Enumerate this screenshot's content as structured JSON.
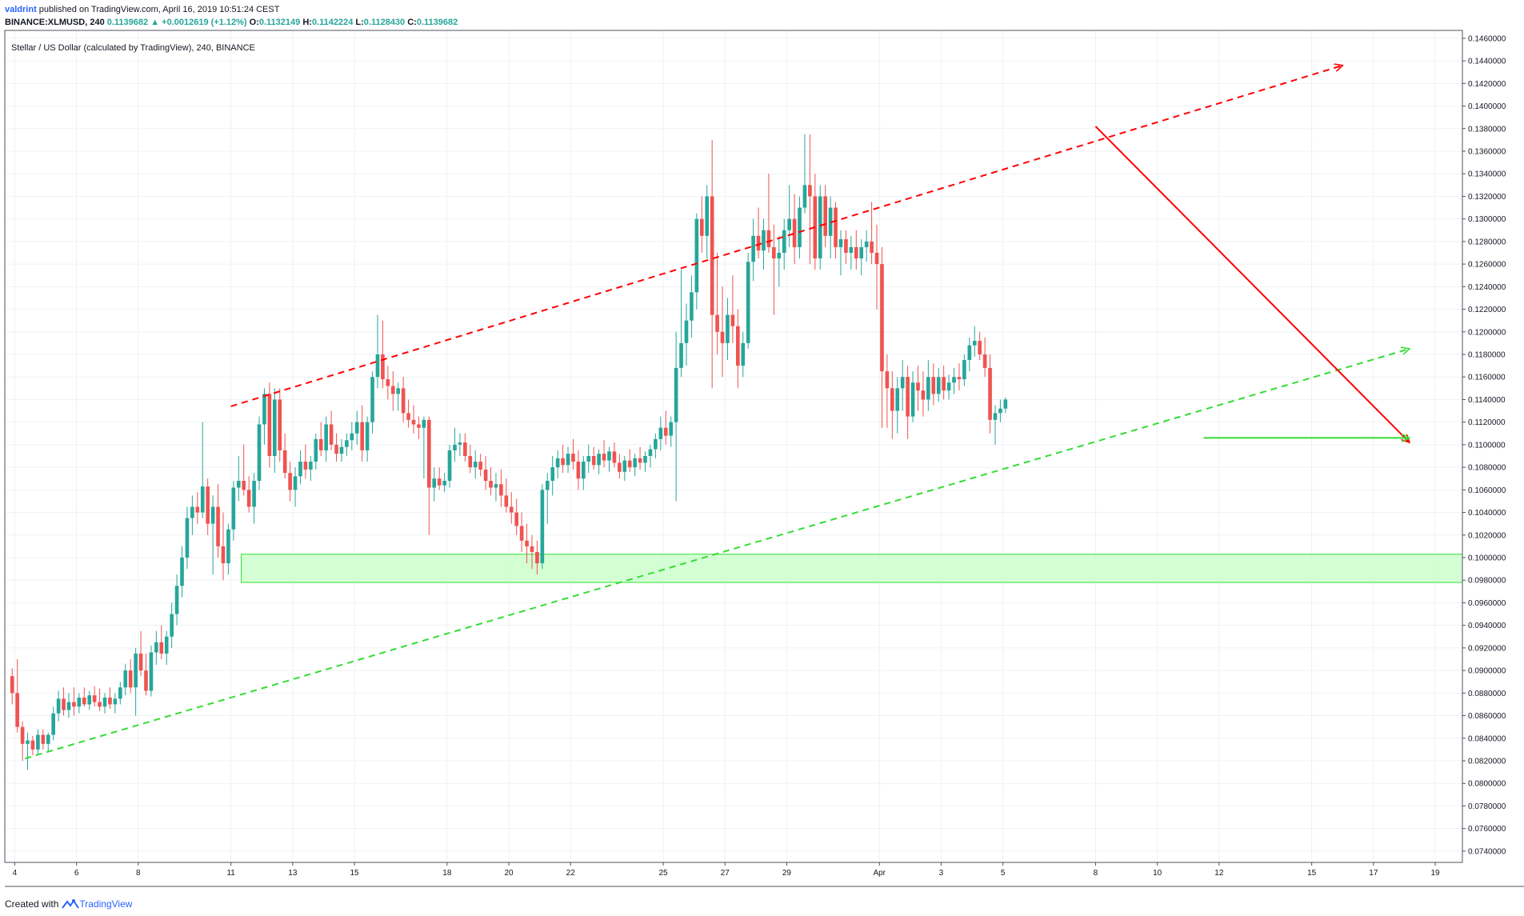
{
  "header": {
    "author": "valdrint",
    "published": "published on TradingView.com, April 16, 2019 10:51:24 CEST",
    "symbol": "BINANCE:XLMUSD, 240",
    "last": "0.1139682",
    "change": "▲ +0.0012619 (+1.12%)",
    "o_label": "O:",
    "o": "0.1132149",
    "h_label": "H:",
    "h": "0.1142224",
    "l_label": "L:",
    "l": "0.1128430",
    "c_label": "C:",
    "c": "0.1139682"
  },
  "footer": {
    "created_with": "Created with",
    "brand": "TradingView",
    "brand_icon": "tradingview-logo-icon"
  },
  "colors": {
    "up": "#26a69a",
    "down": "#ef5350",
    "resistance": "#ff0000",
    "support": "#33dd33",
    "zone": "#ccffcc",
    "grid": "#eef1f5"
  },
  "chart_data": {
    "type": "candlestick",
    "title": "Stellar / US Dollar (calculated by TradingView), 240, BINANCE",
    "ylim": [
      0.073,
      0.1467
    ],
    "y_ticks": [
      "0.1460000",
      "0.1440000",
      "0.1420000",
      "0.1400000",
      "0.1380000",
      "0.1360000",
      "0.1340000",
      "0.1320000",
      "0.1300000",
      "0.1280000",
      "0.1260000",
      "0.1240000",
      "0.1220000",
      "0.1200000",
      "0.1180000",
      "0.1160000",
      "0.1140000",
      "0.1120000",
      "0.1100000",
      "0.1080000",
      "0.1060000",
      "0.1040000",
      "0.1020000",
      "0.1000000",
      "0.0980000",
      "0.0960000",
      "0.0940000",
      "0.0920000",
      "0.0900000",
      "0.0880000",
      "0.0860000",
      "0.0840000",
      "0.0820000",
      "0.0800000",
      "0.0780000",
      "0.0760000",
      "0.0740000"
    ],
    "x_ticks": [
      {
        "label": "4",
        "date": "2019-03-04"
      },
      {
        "label": "6",
        "date": "2019-03-06"
      },
      {
        "label": "8",
        "date": "2019-03-08"
      },
      {
        "label": "11",
        "date": "2019-03-11"
      },
      {
        "label": "13",
        "date": "2019-03-13"
      },
      {
        "label": "15",
        "date": "2019-03-15"
      },
      {
        "label": "18",
        "date": "2019-03-18"
      },
      {
        "label": "20",
        "date": "2019-03-20"
      },
      {
        "label": "22",
        "date": "2019-03-22"
      },
      {
        "label": "25",
        "date": "2019-03-25"
      },
      {
        "label": "27",
        "date": "2019-03-27"
      },
      {
        "label": "29",
        "date": "2019-03-29"
      },
      {
        "label": "Apr",
        "date": "2019-04-01"
      },
      {
        "label": "3",
        "date": "2019-04-03"
      },
      {
        "label": "5",
        "date": "2019-04-05"
      },
      {
        "label": "8",
        "date": "2019-04-08"
      },
      {
        "label": "10",
        "date": "2019-04-10"
      },
      {
        "label": "12",
        "date": "2019-04-12"
      },
      {
        "label": "15",
        "date": "2019-04-15"
      },
      {
        "label": "17",
        "date": "2019-04-17"
      },
      {
        "label": "19",
        "date": "2019-04-19"
      }
    ],
    "start_date": "2019-03-03T20:00",
    "bar_hours": 4,
    "series": [
      [
        0.0895,
        0.0902,
        0.087,
        0.088
      ],
      [
        0.088,
        0.091,
        0.0845,
        0.085
      ],
      [
        0.085,
        0.0855,
        0.082,
        0.0835
      ],
      [
        0.0835,
        0.0845,
        0.0812,
        0.0838
      ],
      [
        0.0838,
        0.0842,
        0.0825,
        0.083
      ],
      [
        0.083,
        0.0848,
        0.0826,
        0.0843
      ],
      [
        0.0843,
        0.0848,
        0.083,
        0.0835
      ],
      [
        0.0835,
        0.0845,
        0.0828,
        0.0843
      ],
      [
        0.0843,
        0.0868,
        0.0838,
        0.0862
      ],
      [
        0.0862,
        0.0882,
        0.0855,
        0.0875
      ],
      [
        0.0875,
        0.0885,
        0.086,
        0.0865
      ],
      [
        0.0865,
        0.088,
        0.0858,
        0.0872
      ],
      [
        0.0872,
        0.0885,
        0.086,
        0.0868
      ],
      [
        0.0868,
        0.088,
        0.0862,
        0.0876
      ],
      [
        0.0876,
        0.0885,
        0.0868,
        0.087
      ],
      [
        0.087,
        0.0882,
        0.0865,
        0.0878
      ],
      [
        0.0878,
        0.0886,
        0.0868,
        0.0872
      ],
      [
        0.0872,
        0.0884,
        0.0864,
        0.0868
      ],
      [
        0.0868,
        0.088,
        0.0862,
        0.0876
      ],
      [
        0.0876,
        0.0885,
        0.0866,
        0.087
      ],
      [
        0.087,
        0.088,
        0.0862,
        0.0875
      ],
      [
        0.0875,
        0.089,
        0.087,
        0.0885
      ],
      [
        0.0885,
        0.0906,
        0.0878,
        0.09
      ],
      [
        0.09,
        0.091,
        0.088,
        0.0885
      ],
      [
        0.0885,
        0.092,
        0.086,
        0.0915
      ],
      [
        0.0915,
        0.0935,
        0.0895,
        0.09
      ],
      [
        0.09,
        0.0915,
        0.0878,
        0.0882
      ],
      [
        0.0882,
        0.0922,
        0.0877,
        0.0916
      ],
      [
        0.0916,
        0.0935,
        0.0905,
        0.0925
      ],
      [
        0.0925,
        0.094,
        0.091,
        0.0915
      ],
      [
        0.0915,
        0.0935,
        0.0905,
        0.093
      ],
      [
        0.093,
        0.096,
        0.092,
        0.095
      ],
      [
        0.095,
        0.0985,
        0.094,
        0.0975
      ],
      [
        0.0975,
        0.101,
        0.0965,
        0.1
      ],
      [
        0.1,
        0.1045,
        0.099,
        0.1035
      ],
      [
        0.1035,
        0.1055,
        0.102,
        0.1045
      ],
      [
        0.1045,
        0.1058,
        0.103,
        0.104
      ],
      [
        0.104,
        0.112,
        0.1035,
        0.1063
      ],
      [
        0.1063,
        0.107,
        0.102,
        0.103
      ],
      [
        0.103,
        0.1055,
        0.0985,
        0.1045
      ],
      [
        0.1045,
        0.1065,
        0.1,
        0.101
      ],
      [
        0.101,
        0.104,
        0.098,
        0.0995
      ],
      [
        0.0995,
        0.103,
        0.0985,
        0.1025
      ],
      [
        0.1025,
        0.1068,
        0.1015,
        0.1062
      ],
      [
        0.1062,
        0.109,
        0.105,
        0.1068
      ],
      [
        0.1068,
        0.11,
        0.1055,
        0.106
      ],
      [
        0.106,
        0.1072,
        0.104,
        0.1045
      ],
      [
        0.1045,
        0.1075,
        0.103,
        0.1068
      ],
      [
        0.1068,
        0.1125,
        0.106,
        0.1118
      ],
      [
        0.1118,
        0.115,
        0.11,
        0.1145
      ],
      [
        0.1145,
        0.1155,
        0.108,
        0.109
      ],
      [
        0.109,
        0.115,
        0.1075,
        0.114
      ],
      [
        0.114,
        0.115,
        0.1085,
        0.1095
      ],
      [
        0.1095,
        0.111,
        0.107,
        0.1075
      ],
      [
        0.1075,
        0.1085,
        0.105,
        0.106
      ],
      [
        0.106,
        0.108,
        0.1045,
        0.1072
      ],
      [
        0.1072,
        0.1095,
        0.1065,
        0.1085
      ],
      [
        0.1085,
        0.11,
        0.107,
        0.1078
      ],
      [
        0.1078,
        0.109,
        0.1068,
        0.1085
      ],
      [
        0.1085,
        0.111,
        0.1078,
        0.1105
      ],
      [
        0.1105,
        0.112,
        0.109,
        0.1095
      ],
      [
        0.1095,
        0.1125,
        0.1085,
        0.1118
      ],
      [
        0.1118,
        0.113,
        0.1095,
        0.11
      ],
      [
        0.11,
        0.111,
        0.1085,
        0.1092
      ],
      [
        0.1092,
        0.1105,
        0.1085,
        0.1098
      ],
      [
        0.1098,
        0.111,
        0.109,
        0.1104
      ],
      [
        0.1104,
        0.112,
        0.1095,
        0.111
      ],
      [
        0.111,
        0.113,
        0.11,
        0.112
      ],
      [
        0.112,
        0.1135,
        0.1085,
        0.1095
      ],
      [
        0.1095,
        0.1125,
        0.1085,
        0.112
      ],
      [
        0.112,
        0.1165,
        0.111,
        0.116
      ],
      [
        0.116,
        0.1215,
        0.115,
        0.118
      ],
      [
        0.118,
        0.121,
        0.115,
        0.1158
      ],
      [
        0.1158,
        0.117,
        0.114,
        0.1152
      ],
      [
        0.1152,
        0.1165,
        0.113,
        0.1145
      ],
      [
        0.1145,
        0.1155,
        0.113,
        0.115
      ],
      [
        0.115,
        0.116,
        0.112,
        0.1128
      ],
      [
        0.1128,
        0.114,
        0.1115,
        0.1122
      ],
      [
        0.1122,
        0.1135,
        0.111,
        0.1118
      ],
      [
        0.1118,
        0.1125,
        0.1105,
        0.1115
      ],
      [
        0.1115,
        0.1125,
        0.107,
        0.1122
      ],
      [
        0.1122,
        0.1125,
        0.102,
        0.1062
      ],
      [
        0.1062,
        0.108,
        0.105,
        0.107
      ],
      [
        0.107,
        0.108,
        0.106,
        0.1064
      ],
      [
        0.1064,
        0.1075,
        0.1058,
        0.1068
      ],
      [
        0.1068,
        0.11,
        0.1062,
        0.1095
      ],
      [
        0.1095,
        0.1115,
        0.1085,
        0.11
      ],
      [
        0.11,
        0.111,
        0.109,
        0.1102
      ],
      [
        0.1102,
        0.111,
        0.1085,
        0.109
      ],
      [
        0.109,
        0.11,
        0.1075,
        0.108
      ],
      [
        0.108,
        0.1095,
        0.107,
        0.1085
      ],
      [
        0.1085,
        0.1092,
        0.1072,
        0.1078
      ],
      [
        0.1078,
        0.109,
        0.106,
        0.1068
      ],
      [
        0.1068,
        0.108,
        0.1055,
        0.1062
      ],
      [
        0.1062,
        0.1075,
        0.105,
        0.1065
      ],
      [
        0.1065,
        0.1078,
        0.1045,
        0.1055
      ],
      [
        0.1055,
        0.107,
        0.104,
        0.1045
      ],
      [
        0.1045,
        0.1058,
        0.103,
        0.104
      ],
      [
        0.104,
        0.1052,
        0.102,
        0.1028
      ],
      [
        0.1028,
        0.104,
        0.1005,
        0.1015
      ],
      [
        0.1015,
        0.103,
        0.0995,
        0.101
      ],
      [
        0.101,
        0.102,
        0.099,
        0.1005
      ],
      [
        0.1005,
        0.1015,
        0.0985,
        0.0995
      ],
      [
        0.0995,
        0.1065,
        0.099,
        0.106
      ],
      [
        0.106,
        0.1075,
        0.103,
        0.1068
      ],
      [
        0.1068,
        0.109,
        0.1055,
        0.108
      ],
      [
        0.108,
        0.1095,
        0.107,
        0.1088
      ],
      [
        0.1088,
        0.11,
        0.1075,
        0.1082
      ],
      [
        0.1082,
        0.1098,
        0.1075,
        0.1092
      ],
      [
        0.1092,
        0.1105,
        0.1078,
        0.1085
      ],
      [
        0.1085,
        0.1095,
        0.106,
        0.107
      ],
      [
        0.107,
        0.109,
        0.106,
        0.1085
      ],
      [
        0.1085,
        0.11,
        0.1075,
        0.109
      ],
      [
        0.109,
        0.1098,
        0.1078,
        0.1082
      ],
      [
        0.1082,
        0.1096,
        0.1074,
        0.1092
      ],
      [
        0.1092,
        0.1104,
        0.108,
        0.1086
      ],
      [
        0.1086,
        0.1098,
        0.1076,
        0.1094
      ],
      [
        0.1094,
        0.1102,
        0.108,
        0.1084
      ],
      [
        0.1084,
        0.1092,
        0.107,
        0.1076
      ],
      [
        0.1076,
        0.109,
        0.1068,
        0.1086
      ],
      [
        0.1086,
        0.1096,
        0.1076,
        0.108
      ],
      [
        0.108,
        0.1092,
        0.1072,
        0.1088
      ],
      [
        0.1088,
        0.1098,
        0.1078,
        0.1084
      ],
      [
        0.1084,
        0.1094,
        0.1076,
        0.109
      ],
      [
        0.109,
        0.11,
        0.108,
        0.1096
      ],
      [
        0.1096,
        0.111,
        0.1088,
        0.1105
      ],
      [
        0.1105,
        0.1125,
        0.1095,
        0.1115
      ],
      [
        0.1115,
        0.113,
        0.11,
        0.1108
      ],
      [
        0.1108,
        0.1125,
        0.1098,
        0.112
      ],
      [
        0.112,
        0.12,
        0.105,
        0.1168
      ],
      [
        0.1168,
        0.1255,
        0.116,
        0.119
      ],
      [
        0.119,
        0.1225,
        0.117,
        0.121
      ],
      [
        0.121,
        0.125,
        0.1195,
        0.1235
      ],
      [
        0.1235,
        0.1305,
        0.122,
        0.13
      ],
      [
        0.13,
        0.132,
        0.127,
        0.1285
      ],
      [
        0.1285,
        0.133,
        0.1265,
        0.132
      ],
      [
        0.132,
        0.137,
        0.115,
        0.1215
      ],
      [
        0.1215,
        0.127,
        0.118,
        0.12
      ],
      [
        0.12,
        0.124,
        0.116,
        0.119
      ],
      [
        0.119,
        0.123,
        0.1175,
        0.1215
      ],
      [
        0.1215,
        0.125,
        0.119,
        0.1205
      ],
      [
        0.1205,
        0.122,
        0.115,
        0.117
      ],
      [
        0.117,
        0.12,
        0.116,
        0.119
      ],
      [
        0.119,
        0.127,
        0.1185,
        0.1262
      ],
      [
        0.1262,
        0.13,
        0.1245,
        0.1285
      ],
      [
        0.1285,
        0.131,
        0.1265,
        0.1272
      ],
      [
        0.1272,
        0.13,
        0.1255,
        0.129
      ],
      [
        0.129,
        0.134,
        0.127,
        0.1275
      ],
      [
        0.1275,
        0.1295,
        0.1215,
        0.1265
      ],
      [
        0.1265,
        0.1285,
        0.124,
        0.127
      ],
      [
        0.127,
        0.13,
        0.1255,
        0.129
      ],
      [
        0.129,
        0.133,
        0.1275,
        0.13
      ],
      [
        0.13,
        0.1322,
        0.126,
        0.1275
      ],
      [
        0.1275,
        0.132,
        0.1265,
        0.131
      ],
      [
        0.131,
        0.1375,
        0.1305,
        0.133
      ],
      [
        0.133,
        0.1375,
        0.126,
        0.132
      ],
      [
        0.132,
        0.134,
        0.1255,
        0.1265
      ],
      [
        0.1265,
        0.133,
        0.1255,
        0.132
      ],
      [
        0.132,
        0.133,
        0.1275,
        0.1285
      ],
      [
        0.1285,
        0.132,
        0.1265,
        0.131
      ],
      [
        0.131,
        0.1315,
        0.1265,
        0.1275
      ],
      [
        0.1275,
        0.129,
        0.125,
        0.1282
      ],
      [
        0.1282,
        0.129,
        0.126,
        0.127
      ],
      [
        0.127,
        0.1285,
        0.1255,
        0.1275
      ],
      [
        0.1275,
        0.129,
        0.1255,
        0.1265
      ],
      [
        0.1265,
        0.1282,
        0.125,
        0.1275
      ],
      [
        0.1275,
        0.129,
        0.1262,
        0.128
      ],
      [
        0.128,
        0.1315,
        0.126,
        0.127
      ],
      [
        0.127,
        0.1295,
        0.122,
        0.126
      ],
      [
        0.126,
        0.1275,
        0.1115,
        0.1165
      ],
      [
        0.1165,
        0.118,
        0.1115,
        0.115
      ],
      [
        0.115,
        0.1165,
        0.1105,
        0.113
      ],
      [
        0.113,
        0.116,
        0.111,
        0.115
      ],
      [
        0.115,
        0.1175,
        0.113,
        0.116
      ],
      [
        0.116,
        0.117,
        0.1105,
        0.1125
      ],
      [
        0.1125,
        0.1165,
        0.112,
        0.1155
      ],
      [
        0.1155,
        0.117,
        0.113,
        0.1148
      ],
      [
        0.1148,
        0.1165,
        0.1125,
        0.114
      ],
      [
        0.114,
        0.1175,
        0.113,
        0.116
      ],
      [
        0.116,
        0.1172,
        0.1135,
        0.1145
      ],
      [
        0.1145,
        0.1168,
        0.1138,
        0.116
      ],
      [
        0.116,
        0.117,
        0.114,
        0.1148
      ],
      [
        0.1148,
        0.1162,
        0.114,
        0.1155
      ],
      [
        0.1155,
        0.1168,
        0.1145,
        0.116
      ],
      [
        0.116,
        0.1172,
        0.1148,
        0.1158
      ],
      [
        0.1158,
        0.118,
        0.1152,
        0.1175
      ],
      [
        0.1175,
        0.1195,
        0.1165,
        0.1188
      ],
      [
        0.1188,
        0.1205,
        0.1178,
        0.1192
      ],
      [
        0.1192,
        0.12,
        0.1175,
        0.118
      ],
      [
        0.118,
        0.1195,
        0.116,
        0.1168
      ],
      [
        0.1168,
        0.118,
        0.111,
        0.1122
      ],
      [
        0.1122,
        0.1135,
        0.11,
        0.1128
      ],
      [
        0.1128,
        0.114,
        0.112,
        0.1132
      ],
      [
        0.1132,
        0.1142,
        0.1128,
        0.114
      ]
    ],
    "drawings": [
      {
        "kind": "dashed-arrow",
        "label": "resistance channel",
        "color": "#ff0000",
        "from": {
          "date": "2019-03-11T00:00",
          "price": 0.1134
        },
        "to": {
          "date": "2019-04-16T00:00",
          "price": 0.1436
        }
      },
      {
        "kind": "dashed-arrow",
        "label": "support channel",
        "color": "#33dd33",
        "from": {
          "date": "2019-03-04T08:00",
          "price": 0.0822
        },
        "to": {
          "date": "2019-04-18T04:00",
          "price": 0.1185
        }
      },
      {
        "kind": "arrow",
        "label": "descending trendline",
        "color": "#ff0000",
        "from": {
          "date": "2019-04-08T00:00",
          "price": 0.1382
        },
        "to": {
          "date": "2019-04-18T04:00",
          "price": 0.1102
        }
      },
      {
        "kind": "arrow",
        "label": "horizontal support",
        "color": "#33dd33",
        "from": {
          "date": "2019-04-11T12:00",
          "price": 0.1106
        },
        "to": {
          "date": "2019-04-18T04:00",
          "price": 0.1106
        }
      },
      {
        "kind": "rectangle",
        "label": "support zone",
        "color": "#ccffcc",
        "from": {
          "date": "2019-03-11T08:00",
          "price": 0.1003
        },
        "to": {
          "date": "2019-04-21T00:00",
          "price": 0.0978
        }
      }
    ]
  }
}
